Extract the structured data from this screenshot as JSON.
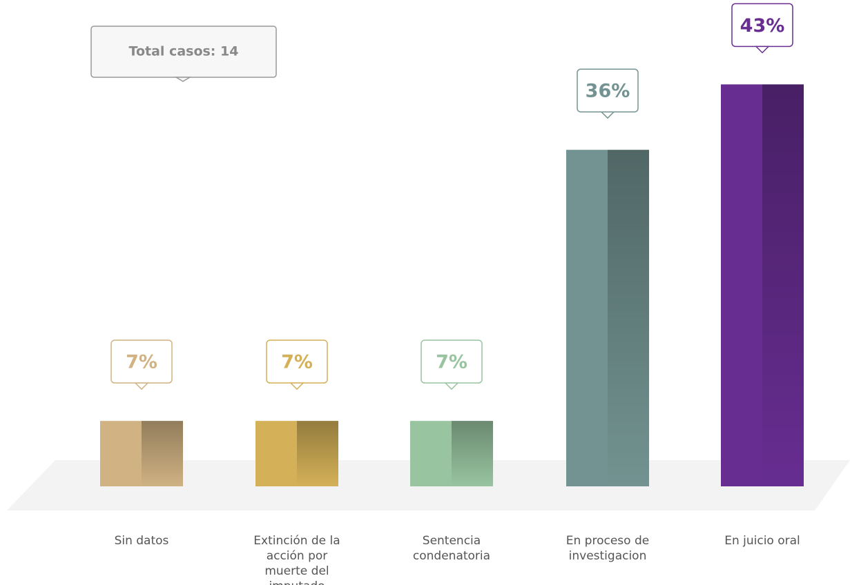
{
  "chart_data": {
    "type": "bar",
    "annotation": "Total casos: 14",
    "categories": [
      "Sin datos",
      "Extinción de la acción por muerte del imputado",
      "Sentencia condenatoria",
      "En proceso de investigacion",
      "En juicio oral"
    ],
    "values": [
      7,
      7,
      7,
      36,
      43
    ],
    "value_labels": [
      "7%",
      "7%",
      "7%",
      "36%",
      "43%"
    ],
    "colors": [
      "#d0b283",
      "#d4b158",
      "#98c4a0",
      "#729391",
      "#672d91"
    ]
  }
}
